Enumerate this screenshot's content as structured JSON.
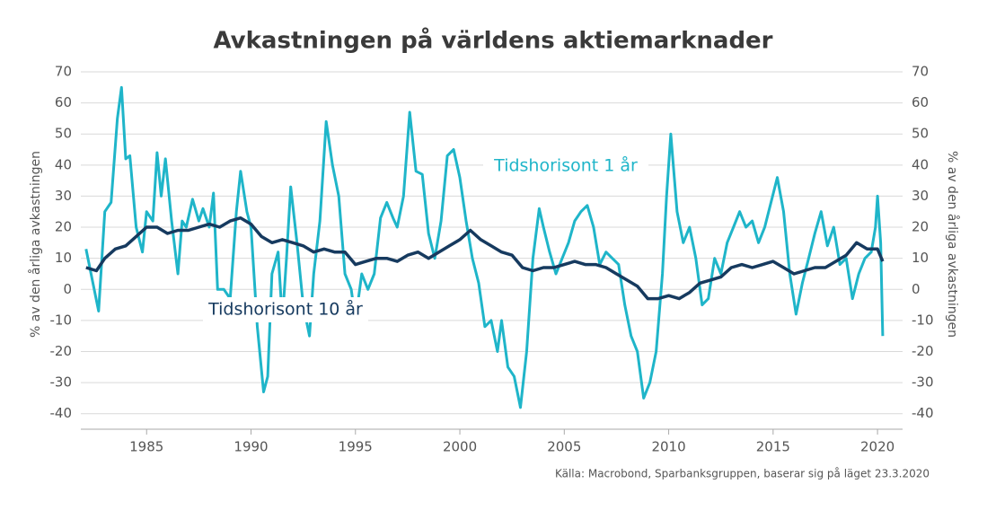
{
  "chart_data": {
    "type": "line",
    "title": "Avkastningen på världens aktiemarknader",
    "ylabel": "% av den årliga avkastningen",
    "y2label": "% av den årliga avkastningen",
    "source": "Källa: Macrobond, Sparbanksgruppen, baserar sig på läget 23.3.2020",
    "xlim": [
      1981.85,
      2021.2
    ],
    "xticks": [
      1985,
      1990,
      1995,
      2000,
      2005,
      2010,
      2015,
      2020
    ],
    "ylim": [
      -45,
      70
    ],
    "yticks": [
      -40,
      -30,
      -20,
      -10,
      0,
      10,
      20,
      30,
      40,
      50,
      60,
      70
    ],
    "y2lim": [
      -45,
      70
    ],
    "y2ticks": [
      -40,
      -30,
      -20,
      -10,
      0,
      10,
      20,
      30,
      40,
      50,
      60,
      70
    ],
    "grid": true,
    "series": [
      {
        "name": "Tidshorisont 1 år",
        "color": "#1fb5c9",
        "x": [
          1982.1,
          1982.4,
          1982.7,
          1983.0,
          1983.3,
          1983.6,
          1983.8,
          1984.0,
          1984.2,
          1984.5,
          1984.8,
          1985.0,
          1985.3,
          1985.5,
          1985.7,
          1985.9,
          1986.2,
          1986.5,
          1986.7,
          1986.9,
          1987.2,
          1987.5,
          1987.7,
          1988.0,
          1988.2,
          1988.4,
          1988.7,
          1989.0,
          1989.3,
          1989.5,
          1989.8,
          1990.0,
          1990.3,
          1990.6,
          1990.8,
          1991.0,
          1991.3,
          1991.5,
          1991.7,
          1991.9,
          1992.2,
          1992.5,
          1992.8,
          1993.0,
          1993.3,
          1993.6,
          1993.9,
          1994.2,
          1994.5,
          1994.8,
          1995.0,
          1995.3,
          1995.6,
          1995.9,
          1996.2,
          1996.5,
          1996.8,
          1997.0,
          1997.3,
          1997.6,
          1997.9,
          1998.2,
          1998.5,
          1998.8,
          1999.1,
          1999.4,
          1999.7,
          2000.0,
          2000.3,
          2000.6,
          2000.9,
          2001.2,
          2001.5,
          2001.8,
          2002.0,
          2002.3,
          2002.6,
          2002.9,
          2003.2,
          2003.5,
          2003.8,
          2004.0,
          2004.3,
          2004.6,
          2004.9,
          2005.2,
          2005.5,
          2005.8,
          2006.1,
          2006.4,
          2006.7,
          2007.0,
          2007.3,
          2007.6,
          2007.9,
          2008.2,
          2008.5,
          2008.8,
          2009.1,
          2009.4,
          2009.7,
          2009.9,
          2010.1,
          2010.4,
          2010.7,
          2011.0,
          2011.3,
          2011.6,
          2011.9,
          2012.2,
          2012.5,
          2012.8,
          2013.1,
          2013.4,
          2013.7,
          2014.0,
          2014.3,
          2014.6,
          2014.9,
          2015.2,
          2015.5,
          2015.8,
          2016.1,
          2016.4,
          2016.7,
          2017.0,
          2017.3,
          2017.6,
          2017.9,
          2018.2,
          2018.5,
          2018.8,
          2019.1,
          2019.4,
          2019.7,
          2019.9,
          2020.0,
          2020.15,
          2020.25
        ],
        "values": [
          13,
          3,
          -7,
          25,
          28,
          55,
          65,
          42,
          43,
          20,
          12,
          25,
          22,
          44,
          30,
          42,
          22,
          5,
          22,
          20,
          29,
          22,
          26,
          20,
          31,
          0,
          0,
          -3,
          25,
          38,
          25,
          20,
          -12,
          -33,
          -28,
          5,
          12,
          -10,
          10,
          33,
          15,
          -5,
          -15,
          5,
          22,
          54,
          40,
          30,
          5,
          0,
          -10,
          5,
          0,
          5,
          23,
          28,
          23,
          20,
          30,
          57,
          38,
          37,
          18,
          10,
          22,
          43,
          45,
          36,
          22,
          10,
          2,
          -12,
          -10,
          -20,
          -10,
          -25,
          -28,
          -38,
          -20,
          10,
          26,
          20,
          12,
          5,
          10,
          15,
          22,
          25,
          27,
          20,
          8,
          12,
          10,
          8,
          -5,
          -15,
          -20,
          -35,
          -30,
          -20,
          5,
          30,
          50,
          25,
          15,
          20,
          10,
          -5,
          -3,
          10,
          5,
          15,
          20,
          25,
          20,
          22,
          15,
          20,
          28,
          36,
          25,
          5,
          -8,
          2,
          10,
          18,
          25,
          14,
          20,
          8,
          10,
          -3,
          5,
          10,
          12,
          20,
          30,
          15,
          -15
        ]
      },
      {
        "name": "Tidshorisont 10 år",
        "color": "#163a5f",
        "x": [
          1982.1,
          1982.6,
          1983,
          1983.5,
          1984,
          1984.5,
          1985,
          1985.5,
          1986,
          1986.5,
          1987,
          1987.5,
          1988,
          1988.5,
          1989,
          1989.5,
          1990,
          1990.5,
          1991,
          1991.5,
          1992,
          1992.5,
          1993,
          1993.5,
          1994,
          1994.5,
          1995,
          1995.5,
          1996,
          1996.5,
          1997,
          1997.5,
          1998,
          1998.5,
          1999,
          1999.5,
          2000,
          2000.5,
          2001,
          2001.5,
          2002,
          2002.5,
          2003,
          2003.5,
          2004,
          2004.5,
          2005,
          2005.5,
          2006,
          2006.5,
          2007,
          2007.5,
          2008,
          2008.5,
          2009,
          2009.5,
          2010,
          2010.5,
          2011,
          2011.5,
          2012,
          2012.5,
          2013,
          2013.5,
          2014,
          2014.5,
          2015,
          2015.5,
          2016,
          2016.5,
          2017,
          2017.5,
          2018,
          2018.5,
          2019,
          2019.5,
          2020,
          2020.25
        ],
        "values": [
          7,
          6,
          10,
          13,
          14,
          17,
          20,
          20,
          18,
          19,
          19,
          20,
          21,
          20,
          22,
          23,
          21,
          17,
          15,
          16,
          15,
          14,
          12,
          13,
          12,
          12,
          8,
          9,
          10,
          10,
          9,
          11,
          12,
          10,
          12,
          14,
          16,
          19,
          16,
          14,
          12,
          11,
          7,
          6,
          7,
          7,
          8,
          9,
          8,
          8,
          7,
          5,
          3,
          1,
          -3,
          -3,
          -2,
          -3,
          -1,
          2,
          3,
          4,
          7,
          8,
          7,
          8,
          9,
          7,
          5,
          6,
          7,
          7,
          9,
          11,
          15,
          13,
          13,
          9
        ]
      }
    ]
  }
}
